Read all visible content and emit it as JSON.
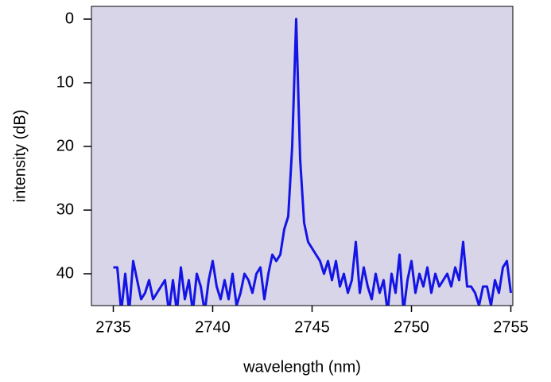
{
  "chart_data": {
    "type": "line",
    "xlabel": "wavelength (nm)",
    "ylabel": "intensity (dB)",
    "x": [
      2735.0,
      2735.2,
      2735.4,
      2735.6,
      2735.8,
      2736.0,
      2736.2,
      2736.4,
      2736.6,
      2736.8,
      2737.0,
      2737.2,
      2737.4,
      2737.6,
      2737.8,
      2738.0,
      2738.2,
      2738.4,
      2738.6,
      2738.8,
      2739.0,
      2739.2,
      2739.4,
      2739.6,
      2739.8,
      2740.0,
      2740.2,
      2740.4,
      2740.6,
      2740.8,
      2741.0,
      2741.2,
      2741.4,
      2741.6,
      2741.8,
      2742.0,
      2742.2,
      2742.4,
      2742.6,
      2742.8,
      2743.0,
      2743.2,
      2743.4,
      2743.6,
      2743.8,
      2744.0,
      2744.2,
      2744.4,
      2744.6,
      2744.8,
      2745.0,
      2745.2,
      2745.4,
      2745.6,
      2745.8,
      2746.0,
      2746.2,
      2746.4,
      2746.6,
      2746.8,
      2747.0,
      2747.2,
      2747.4,
      2747.6,
      2747.8,
      2748.0,
      2748.2,
      2748.4,
      2748.6,
      2748.8,
      2749.0,
      2749.2,
      2749.4,
      2749.6,
      2749.8,
      2750.0,
      2750.2,
      2750.4,
      2750.6,
      2750.8,
      2751.0,
      2751.2,
      2751.4,
      2751.6,
      2751.8,
      2752.0,
      2752.2,
      2752.4,
      2752.6,
      2752.8,
      2753.0,
      2753.2,
      2753.4,
      2753.6,
      2753.8,
      2754.0,
      2754.2,
      2754.4,
      2754.6,
      2754.8,
      2755.0
    ],
    "series": [
      {
        "color": "#1414e6",
        "values": [
          39,
          39,
          46,
          40,
          46,
          38,
          41,
          44,
          43,
          41,
          44,
          43,
          42,
          41,
          46,
          41,
          46,
          39,
          44,
          41,
          46,
          40,
          42,
          46,
          41,
          38,
          42,
          44,
          41,
          44,
          40,
          45,
          43,
          40,
          41,
          43,
          40,
          39,
          44,
          40,
          37,
          38,
          37,
          33,
          31,
          20,
          0,
          22,
          32,
          35,
          36,
          37,
          38,
          40,
          38,
          41,
          38,
          42,
          40,
          43,
          41,
          35,
          43,
          39,
          42,
          44,
          40,
          43,
          41,
          46,
          40,
          43,
          37,
          46,
          41,
          38,
          43,
          40,
          42,
          39,
          43,
          40,
          42,
          41,
          40,
          42,
          39,
          41,
          35,
          42,
          42,
          43,
          45,
          42,
          42,
          45,
          41,
          43,
          39,
          38,
          43
        ]
      }
    ],
    "xlim": [
      2733.9,
      2755.1
    ],
    "xticks": [
      2735,
      2740,
      2745,
      2750,
      2755
    ],
    "ylim": [
      -2,
      45
    ],
    "yticks": [
      0,
      10,
      20,
      30,
      40
    ],
    "y_inverted": true,
    "plot_background": "#d8d5e8"
  }
}
